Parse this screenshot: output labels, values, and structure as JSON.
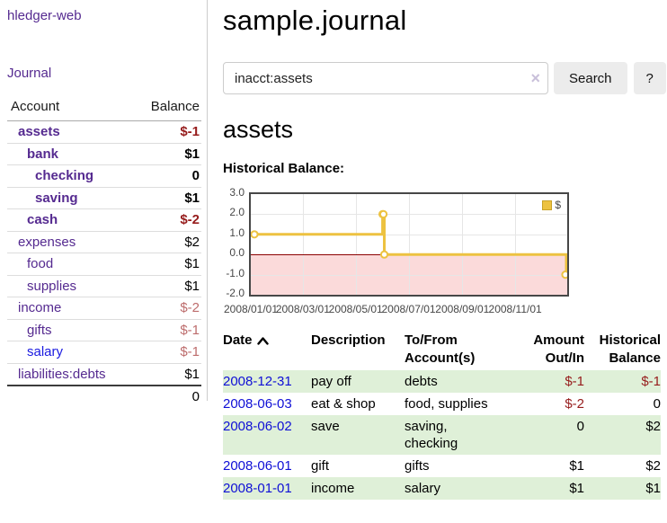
{
  "app": {
    "title": "hledger-web"
  },
  "sidebar": {
    "nav_label": "Journal",
    "table": {
      "headers": {
        "account": "Account",
        "balance": "Balance"
      },
      "rows": [
        {
          "account": "assets",
          "balance": "$-1",
          "level": 1,
          "bold": true,
          "link_color": "purple",
          "balance_style": "neg-strong"
        },
        {
          "account": "bank",
          "balance": "$1",
          "level": 2,
          "bold": true,
          "link_color": "purple",
          "balance_style": "pos"
        },
        {
          "account": "checking",
          "balance": "0",
          "level": 3,
          "bold": true,
          "link_color": "purple",
          "balance_style": "pos"
        },
        {
          "account": "saving",
          "balance": "$1",
          "level": 3,
          "bold": true,
          "link_color": "purple",
          "balance_style": "pos"
        },
        {
          "account": "cash",
          "balance": "$-2",
          "level": 2,
          "bold": true,
          "link_color": "purple",
          "balance_style": "neg-strong"
        },
        {
          "account": "expenses",
          "balance": "$2",
          "level": 1,
          "bold": false,
          "link_color": "purple",
          "balance_style": "pos"
        },
        {
          "account": "food",
          "balance": "$1",
          "level": 2,
          "bold": false,
          "link_color": "purple",
          "balance_style": "pos"
        },
        {
          "account": "supplies",
          "balance": "$1",
          "level": 2,
          "bold": false,
          "link_color": "purple",
          "balance_style": "pos"
        },
        {
          "account": "income",
          "balance": "$-2",
          "level": 1,
          "bold": false,
          "link_color": "purple",
          "balance_style": "neg-soft"
        },
        {
          "account": "gifts",
          "balance": "$-1",
          "level": 2,
          "bold": false,
          "link_color": "purple",
          "balance_style": "neg-soft"
        },
        {
          "account": "salary",
          "balance": "$-1",
          "level": 2,
          "bold": false,
          "link_color": "blue",
          "balance_style": "neg-soft"
        },
        {
          "account": "liabilities:debts",
          "balance": "$1",
          "level": 1,
          "bold": false,
          "link_color": "purple",
          "balance_style": "pos"
        }
      ],
      "total": "0"
    }
  },
  "header": {
    "title": "sample.journal"
  },
  "search": {
    "value": "inacct:assets",
    "clear_icon": "×",
    "button_label": "Search",
    "help_label": "?"
  },
  "account_page": {
    "heading": "assets",
    "chart_label": "Historical Balance:"
  },
  "chart_data": {
    "type": "line",
    "step": true,
    "title": "Historical Balance of assets",
    "legend": "$",
    "ylim": [
      -2.0,
      3.0
    ],
    "yticks": [
      3.0,
      2.0,
      1.0,
      0.0,
      -1.0,
      -2.0
    ],
    "xticks": [
      "2008/01/01",
      "2008/03/01",
      "2008/05/01",
      "2008/07/01",
      "2008/09/01",
      "2008/11/01"
    ],
    "x_range_days": 365,
    "series": [
      {
        "name": "$",
        "color": "#edc240",
        "points": [
          {
            "date": "2008-01-01",
            "value": 1
          },
          {
            "date": "2008-06-01",
            "value": 2
          },
          {
            "date": "2008-06-02",
            "value": 2
          },
          {
            "date": "2008-06-03",
            "value": 0
          },
          {
            "date": "2008-12-31",
            "value": -1
          }
        ]
      }
    ],
    "colors": {
      "negative_region": "#fbdada",
      "zero_line": "#8b0000",
      "grid": "#e6e6e6",
      "border": "#474747",
      "swatch_border": "#c9a227"
    }
  },
  "transactions": {
    "headers": {
      "date": "Date",
      "description": "Description",
      "accounts_line1": "To/From",
      "accounts_line2": "Account(s)",
      "amount_line1": "Amount",
      "amount_line2": "Out/In",
      "balance_line1": "Historical",
      "balance_line2": "Balance"
    },
    "rows": [
      {
        "date": "2008-12-31",
        "description": "pay off",
        "accounts": "debts",
        "amount": "$-1",
        "amount_neg": true,
        "balance": "$-1",
        "balance_neg": true
      },
      {
        "date": "2008-06-03",
        "description": "eat & shop",
        "accounts": "food, supplies",
        "amount": "$-2",
        "amount_neg": true,
        "balance": "0",
        "balance_neg": false
      },
      {
        "date": "2008-06-02",
        "description": "save",
        "accounts": "saving, checking",
        "amount": "0",
        "amount_neg": false,
        "balance": "$2",
        "balance_neg": false
      },
      {
        "date": "2008-06-01",
        "description": "gift",
        "accounts": "gifts",
        "amount": "$1",
        "amount_neg": false,
        "balance": "$2",
        "balance_neg": false
      },
      {
        "date": "2008-01-01",
        "description": "income",
        "accounts": "salary",
        "amount": "$1",
        "amount_neg": false,
        "balance": "$1",
        "balance_neg": false
      }
    ]
  }
}
